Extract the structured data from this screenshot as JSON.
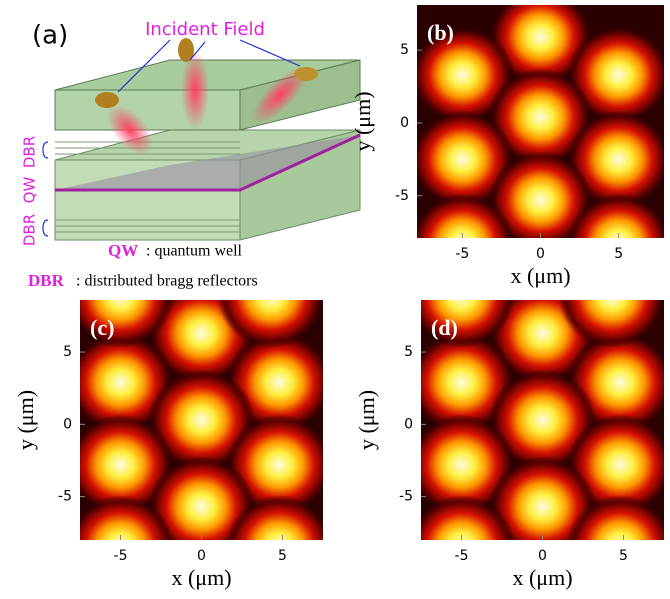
{
  "diagram": {
    "panel": "(a)",
    "incident": "Incident Field",
    "dbr_top": "DBR",
    "qw": "QW",
    "dbr_bottom": "DBR",
    "legend_qw_key": "QW",
    "legend_qw_text": ": quantum well",
    "legend_dbr_key": "DBR",
    "legend_dbr_text": ": distributed bragg reflectors"
  },
  "chart_data": [
    {
      "type": "heatmap",
      "panel": "(b)",
      "xlabel": "x (μm)",
      "ylabel": "y (μm)",
      "xlim": [
        -7.9,
        7.9
      ],
      "ylim": [
        -7.9,
        8.1
      ],
      "xticks": [
        -5,
        0,
        5
      ],
      "yticks": [
        -5,
        0,
        5
      ],
      "peaks": {
        "x": [
          0,
          -5,
          5,
          0,
          -5,
          5,
          0,
          -5,
          5
        ],
        "y": [
          5.9,
          3.3,
          3.3,
          0.4,
          -2.5,
          -2.5,
          -5.3,
          -8.2,
          -8.2
        ]
      }
    },
    {
      "type": "heatmap",
      "panel": "(c)",
      "xlabel": "x (μm)",
      "ylabel": "y (μm)",
      "xlim": [
        -7.5,
        7.5
      ],
      "ylim": [
        -8,
        8.6
      ],
      "xticks": [
        -5,
        0,
        5
      ],
      "yticks": [
        -5,
        0,
        5
      ],
      "peaks": {
        "x": [
          0,
          -5,
          4.8,
          0,
          -5,
          4.8,
          0,
          -5,
          4.8,
          -5,
          4.3
        ],
        "y": [
          6.3,
          2.9,
          2.9,
          0.3,
          -2.8,
          -2.8,
          -5.7,
          -8.4,
          -8.4,
          8.8,
          8.8
        ]
      }
    },
    {
      "type": "heatmap",
      "panel": "(d)",
      "xlabel": "x (μm)",
      "ylabel": "y (μm)",
      "xlim": [
        -7.5,
        7.5
      ],
      "ylim": [
        -8,
        8.6
      ],
      "xticks": [
        -5,
        0,
        5
      ],
      "yticks": [
        -5,
        0,
        5
      ],
      "peaks": {
        "x": [
          0,
          -5,
          4.8,
          0,
          -5,
          4.8,
          0,
          -5,
          4.8,
          -5,
          4.3
        ],
        "y": [
          6.3,
          2.9,
          2.9,
          0.3,
          -2.8,
          -2.8,
          -5.7,
          -8.4,
          -8.4,
          8.8,
          8.8
        ]
      }
    }
  ]
}
